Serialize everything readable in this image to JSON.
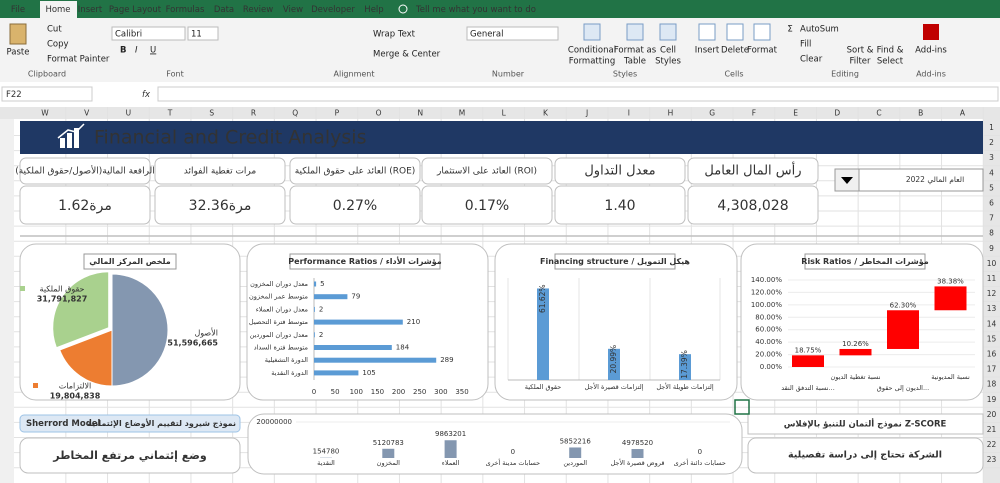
{
  "ribbon": {
    "tabs": [
      "File",
      "Home",
      "Insert",
      "Page Layout",
      "Formulas",
      "Data",
      "Review",
      "View",
      "Developer",
      "Help"
    ],
    "tell_me": "Tell me what you want to do",
    "clipboard": {
      "paste": "Paste",
      "cut": "Cut",
      "copy": "Copy",
      "format_painter": "Format Painter",
      "group": "Clipboard"
    },
    "font": {
      "name": "Calibri",
      "size": "11",
      "group": "Font"
    },
    "alignment": {
      "wrap": "Wrap Text",
      "merge": "Merge & Center",
      "group": "Alignment"
    },
    "number": {
      "format": "General",
      "group": "Number"
    },
    "styles": {
      "conditional": [
        "Conditional",
        "Formatting"
      ],
      "table": [
        "Format as",
        "Table"
      ],
      "cell": [
        "Cell",
        "Styles"
      ],
      "group": "Styles"
    },
    "cells": {
      "insert": "Insert",
      "delete": "Delete",
      "format": "Format",
      "group": "Cells"
    },
    "editing": {
      "autosum": "AutoSum",
      "fill": "Fill",
      "clear": "Clear",
      "sort": [
        "Sort &",
        "Filter"
      ],
      "find": [
        "Find &",
        "Select"
      ],
      "group": "Editing"
    },
    "addins": {
      "button": "Add-ins",
      "group": "Add-ins"
    }
  },
  "formula_bar": {
    "name_box": "F22",
    "fx": "fx"
  },
  "sheet": {
    "columns": [
      "W",
      "V",
      "U",
      "T",
      "S",
      "R",
      "Q",
      "P",
      "O",
      "N",
      "M",
      "L",
      "K",
      "J",
      "I",
      "H",
      "G",
      "F",
      "E",
      "D",
      "C",
      "B",
      "A"
    ],
    "rows": [
      "1",
      "2",
      "3",
      "4",
      "5",
      "6",
      "7",
      "8",
      "9",
      "10",
      "11",
      "12",
      "13",
      "14",
      "15",
      "16",
      "17",
      "18",
      "19",
      "20",
      "21",
      "22",
      "23"
    ]
  },
  "dashboard": {
    "title": "Financial and Credit Analysis",
    "year": "العام المالي 2022",
    "kpis": [
      {
        "label": "الرافعة المالية(الأصول/حقوق الملكية)",
        "value": "1.62مرة",
        "color": "#c00000"
      },
      {
        "label": "مرات تغطية الفوائد",
        "value": "32.36مرة",
        "color": "#c00000"
      },
      {
        "label": "العائد على حقوق الملكية (ROE)",
        "value": "0.27%",
        "color": "#00a050"
      },
      {
        "label": "العائد على الاستثمار (ROI)",
        "value": "0.17%",
        "color": "#00a050"
      },
      {
        "label": "معدل التداول",
        "value": "1.40",
        "color": "#843c0c"
      },
      {
        "label": "رأس المال العامل",
        "value": "4,308,028",
        "color": "#843c0c"
      }
    ],
    "sherrord": {
      "model": "Sherrord Model",
      "title": "نموذج شيرود لتقييم الأوضاع الإئتمانية",
      "result": "وضع إئتماني مرتفع المخاطر"
    },
    "altman": {
      "title": "نموذج ألتمان للتنبؤ بالإفلاس Z-SCORE",
      "result": "الشركة تحتاج إلى دراسة تفصيلية"
    }
  },
  "chart_data": [
    {
      "type": "pie",
      "title": "ملخص المركز المالي",
      "categories": [
        "الأصول",
        "الالتزامات",
        "حقوق الملكية"
      ],
      "values": [
        51596665,
        19804838,
        31791827
      ],
      "value_labels": [
        "51,596,665",
        "19,804,838",
        "31,791,827"
      ],
      "colors": [
        "#8497b0",
        "#ed7d31",
        "#a9d18e"
      ]
    },
    {
      "type": "hbar",
      "title": "Performance Ratios / مؤشرات الأداء",
      "categories": [
        "معدل دوران المخزون",
        "متوسط عمر المخزون",
        "معدل دوران العملاء",
        "متوسط فترة التحصيل",
        "معدل دوران الموردين",
        "متوسط فترة السداد",
        "الدورة التشغيلية",
        "الدورة النقدية"
      ],
      "values": [
        5,
        79,
        2,
        210,
        2,
        184,
        289,
        105
      ],
      "color": "#5b9bd5",
      "xlim": [
        0,
        350
      ],
      "xticks": [
        0,
        50,
        100,
        150,
        200,
        250,
        300,
        350
      ]
    },
    {
      "type": "column",
      "title": "Financing structure / هيكل التمويل",
      "categories": [
        "حقوق الملكية",
        "إلتزامات قصيرة الأجل",
        "إلتزامات طويلة الأجل"
      ],
      "values": [
        61.62,
        20.99,
        17.39
      ],
      "value_labels": [
        "61.62%",
        "20.99%",
        "17.39%"
      ],
      "color": "#5b9bd5",
      "ylim": [
        0,
        70
      ]
    },
    {
      "type": "waterfall",
      "title": "Risk Ratios / مؤشرات المخاطر",
      "categories": [
        "نسبة التدفق النقد...",
        "نسبة تغطية الديون",
        "الديون إلى حقوق...",
        "نسبة المديونية"
      ],
      "values": [
        18.75,
        10.26,
        62.3,
        38.38
      ],
      "value_labels": [
        "18.75%",
        "10.26%",
        "62.30%",
        "38.38%"
      ],
      "color": "#ff0000",
      "ylim": [
        0,
        140
      ],
      "yticks": [
        {
          "value": 0,
          "label": "0.00%"
        },
        {
          "value": 20,
          "label": "20.00%"
        },
        {
          "value": 40,
          "label": "40.00%"
        },
        {
          "value": 60,
          "label": "60.00%"
        },
        {
          "value": 80,
          "label": "80.00%"
        },
        {
          "value": 100,
          "label": "100.00%"
        },
        {
          "value": 120,
          "label": "120.00%"
        },
        {
          "value": 140,
          "label": "140.00%"
        }
      ]
    },
    {
      "type": "column-small",
      "categories": [
        "النقدية",
        "المخزون",
        "العملاء",
        "حسابات مدينة أخرى",
        "الموردين",
        "قروض قصيرة الأجل",
        "حسابات دائنة أخرى"
      ],
      "values": [
        154780,
        5120783,
        9863201,
        0,
        5852216,
        4978520,
        0
      ],
      "color": "#8497b0",
      "ylim": [
        0,
        20000000
      ],
      "yticks": [
        20000000
      ]
    }
  ]
}
